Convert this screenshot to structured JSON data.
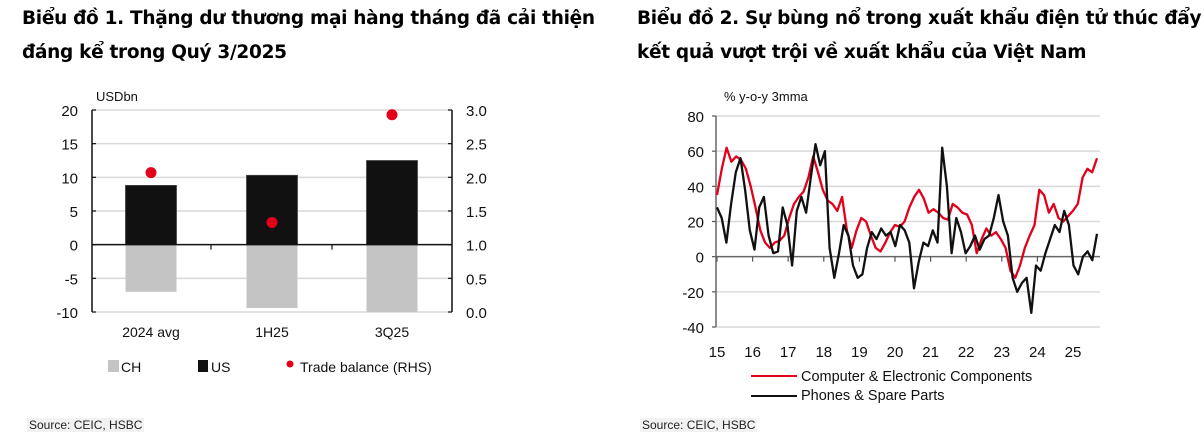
{
  "titles": {
    "chart1": "Biểu đồ 1. Thặng dư thương mại hàng tháng đã cải thiện đáng kể trong Quý 3/2025",
    "chart2": "Biểu đồ 2. Sự bùng nổ trong xuất khẩu điện tử thúc đẩy kết quả vượt trội về xuất khẩu của Việt Nam"
  },
  "sources": {
    "chart1": "Source: CEIC, HSBC",
    "chart2": "Source: CEIC, HSBC"
  },
  "colors": {
    "red": "#e3001b",
    "black": "#111111",
    "grey": "#c4c4c4",
    "grid": "#d9d9d9"
  },
  "chart_data": [
    {
      "type": "bar",
      "title": "Biểu đồ 1. Thặng dư thương mại hàng tháng đã cải thiện đáng kể trong Quý 3/2025",
      "ylabel": "USDbn",
      "ylim": [
        -10,
        20
      ],
      "yticks": [
        20,
        15,
        10,
        5,
        0,
        -5,
        -10
      ],
      "y2lim": [
        0.0,
        3.0
      ],
      "y2ticks": [
        "3.0",
        "2.5",
        "2.0",
        "1.5",
        "1.0",
        "0.5",
        "0.0"
      ],
      "categories": [
        "2024 avg",
        "1H25",
        "3Q25"
      ],
      "series": [
        {
          "name": "CH",
          "kind": "bar",
          "color": "#c4c4c4",
          "values": [
            -7.0,
            -9.4,
            -10.0
          ]
        },
        {
          "name": "US",
          "kind": "bar",
          "color": "#111111",
          "values": [
            8.8,
            10.3,
            12.5
          ]
        },
        {
          "name": "Trade balance (RHS)",
          "kind": "dot",
          "axis": "right",
          "color": "#e3001b",
          "values": [
            2.07,
            1.33,
            2.93
          ]
        }
      ],
      "legend": [
        "CH",
        "US",
        "Trade balance (RHS)"
      ],
      "legend_position": "bottom",
      "grid": true
    },
    {
      "type": "line",
      "title": "Biểu đồ 2. Sự bùng nổ trong xuất khẩu điện tử thúc đẩy kết quả vượt trội về xuất khẩu của Việt Nam",
      "ylabel": "% y-o-y 3mma",
      "ylim": [
        -40,
        80
      ],
      "yticks": [
        80,
        60,
        40,
        20,
        0,
        -20,
        -40
      ],
      "xticks": [
        "15",
        "16",
        "17",
        "18",
        "19",
        "20",
        "21",
        "22",
        "23",
        "24",
        "25"
      ],
      "x_start": 2015.0,
      "x_step": 0.25,
      "series": [
        {
          "name": "Computer & Electronic Components",
          "color": "#e3001b",
          "values": [
            35,
            50,
            62,
            54,
            57,
            55,
            50,
            40,
            28,
            15,
            8,
            5,
            8,
            9,
            12,
            22,
            30,
            34,
            37,
            45,
            57,
            48,
            38,
            32,
            30,
            26,
            34,
            15,
            5,
            15,
            22,
            20,
            12,
            5,
            3,
            8,
            14,
            18,
            17,
            20,
            28,
            34,
            38,
            33,
            25,
            27,
            25,
            22,
            21,
            30,
            28,
            25,
            24,
            18,
            2,
            10,
            16,
            12,
            14,
            10,
            5,
            -8,
            -12,
            -5,
            5,
            12,
            18,
            38,
            35,
            25,
            30,
            22,
            20,
            23,
            26,
            30,
            45,
            50,
            48,
            56
          ]
        },
        {
          "name": "Phones & Spare Parts",
          "color": "#111111",
          "values": [
            28,
            22,
            8,
            30,
            48,
            56,
            38,
            15,
            4,
            28,
            34,
            12,
            2,
            3,
            28,
            18,
            -5,
            26,
            34,
            25,
            45,
            64,
            52,
            60,
            5,
            -12,
            2,
            18,
            12,
            -5,
            -12,
            -10,
            5,
            14,
            10,
            16,
            12,
            14,
            6,
            18,
            15,
            8,
            -18,
            -3,
            8,
            6,
            15,
            8,
            62,
            40,
            2,
            22,
            14,
            2,
            6,
            12,
            4,
            10,
            12,
            22,
            35,
            20,
            12,
            -12,
            -20,
            -15,
            -12,
            -32,
            -5,
            -8,
            2,
            10,
            18,
            14,
            26,
            18,
            -5,
            -10,
            0,
            3,
            -2,
            13
          ]
        }
      ],
      "legend": [
        "Computer & Electronic Components",
        "Phones & Spare Parts"
      ],
      "legend_position": "bottom",
      "grid": true
    }
  ]
}
